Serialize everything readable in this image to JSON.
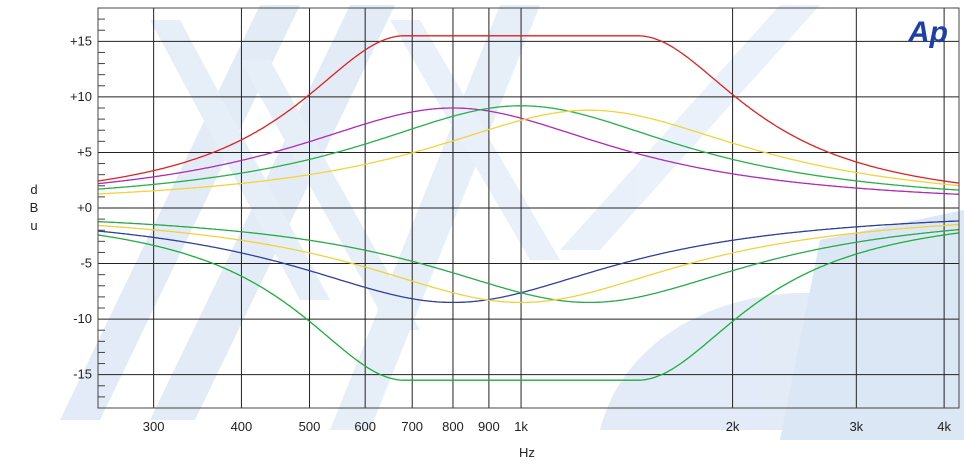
{
  "chart_data": {
    "type": "line",
    "title": "",
    "logo_text": "Ap",
    "xlabel": "Hz",
    "ylabel_letters": [
      "d",
      "B",
      "u"
    ],
    "x_scale": "log",
    "xlim": [
      250,
      4200
    ],
    "ylim": [
      -18,
      18
    ],
    "x_ticks": [
      {
        "value": 300,
        "label": "300"
      },
      {
        "value": 400,
        "label": "400"
      },
      {
        "value": 500,
        "label": "500"
      },
      {
        "value": 600,
        "label": "600"
      },
      {
        "value": 700,
        "label": "700"
      },
      {
        "value": 800,
        "label": "800"
      },
      {
        "value": 900,
        "label": "900"
      },
      {
        "value": 1000,
        "label": "1k"
      },
      {
        "value": 2000,
        "label": "2k"
      },
      {
        "value": 3000,
        "label": "3k"
      },
      {
        "value": 4000,
        "label": "4k"
      }
    ],
    "y_ticks": [
      {
        "value": 15,
        "label": "+15"
      },
      {
        "value": 10,
        "label": "+10"
      },
      {
        "value": 5,
        "label": "+5"
      },
      {
        "value": 0,
        "label": "+0"
      },
      {
        "value": -5,
        "label": "-5"
      },
      {
        "value": -10,
        "label": "-10"
      },
      {
        "value": -15,
        "label": "-15"
      }
    ],
    "grid": true,
    "legend": "none",
    "series": [
      {
        "color": "#e02020",
        "gain": 15.5,
        "center": 1000,
        "flat_octaves": 0.55,
        "slope": 1.6
      },
      {
        "color": "#1cae3c",
        "gain": -15.5,
        "center": 1000,
        "flat_octaves": 0.55,
        "slope": 1.6
      },
      {
        "color": "#b02ab4",
        "gain": 9,
        "center": 800,
        "flat_octaves": 0,
        "slope": 1.05
      },
      {
        "color": "#2f3f9c",
        "gain": -8.5,
        "center": 800,
        "flat_octaves": 0,
        "slope": 1.05
      },
      {
        "color": "#26b04a",
        "gain": 9.2,
        "center": 1000,
        "flat_octaves": 0,
        "slope": 1.05
      },
      {
        "color": "#2aa84a",
        "gain": -8.5,
        "center": 1250,
        "flat_octaves": 0,
        "slope": 1.05
      },
      {
        "color": "#f2d43a",
        "gain": 8.8,
        "center": 1250,
        "flat_octaves": 0,
        "slope": 1.05
      },
      {
        "color": "#f0d23c",
        "gain": -8.5,
        "center": 1000,
        "flat_octaves": 0,
        "slope": 1.05
      }
    ]
  }
}
